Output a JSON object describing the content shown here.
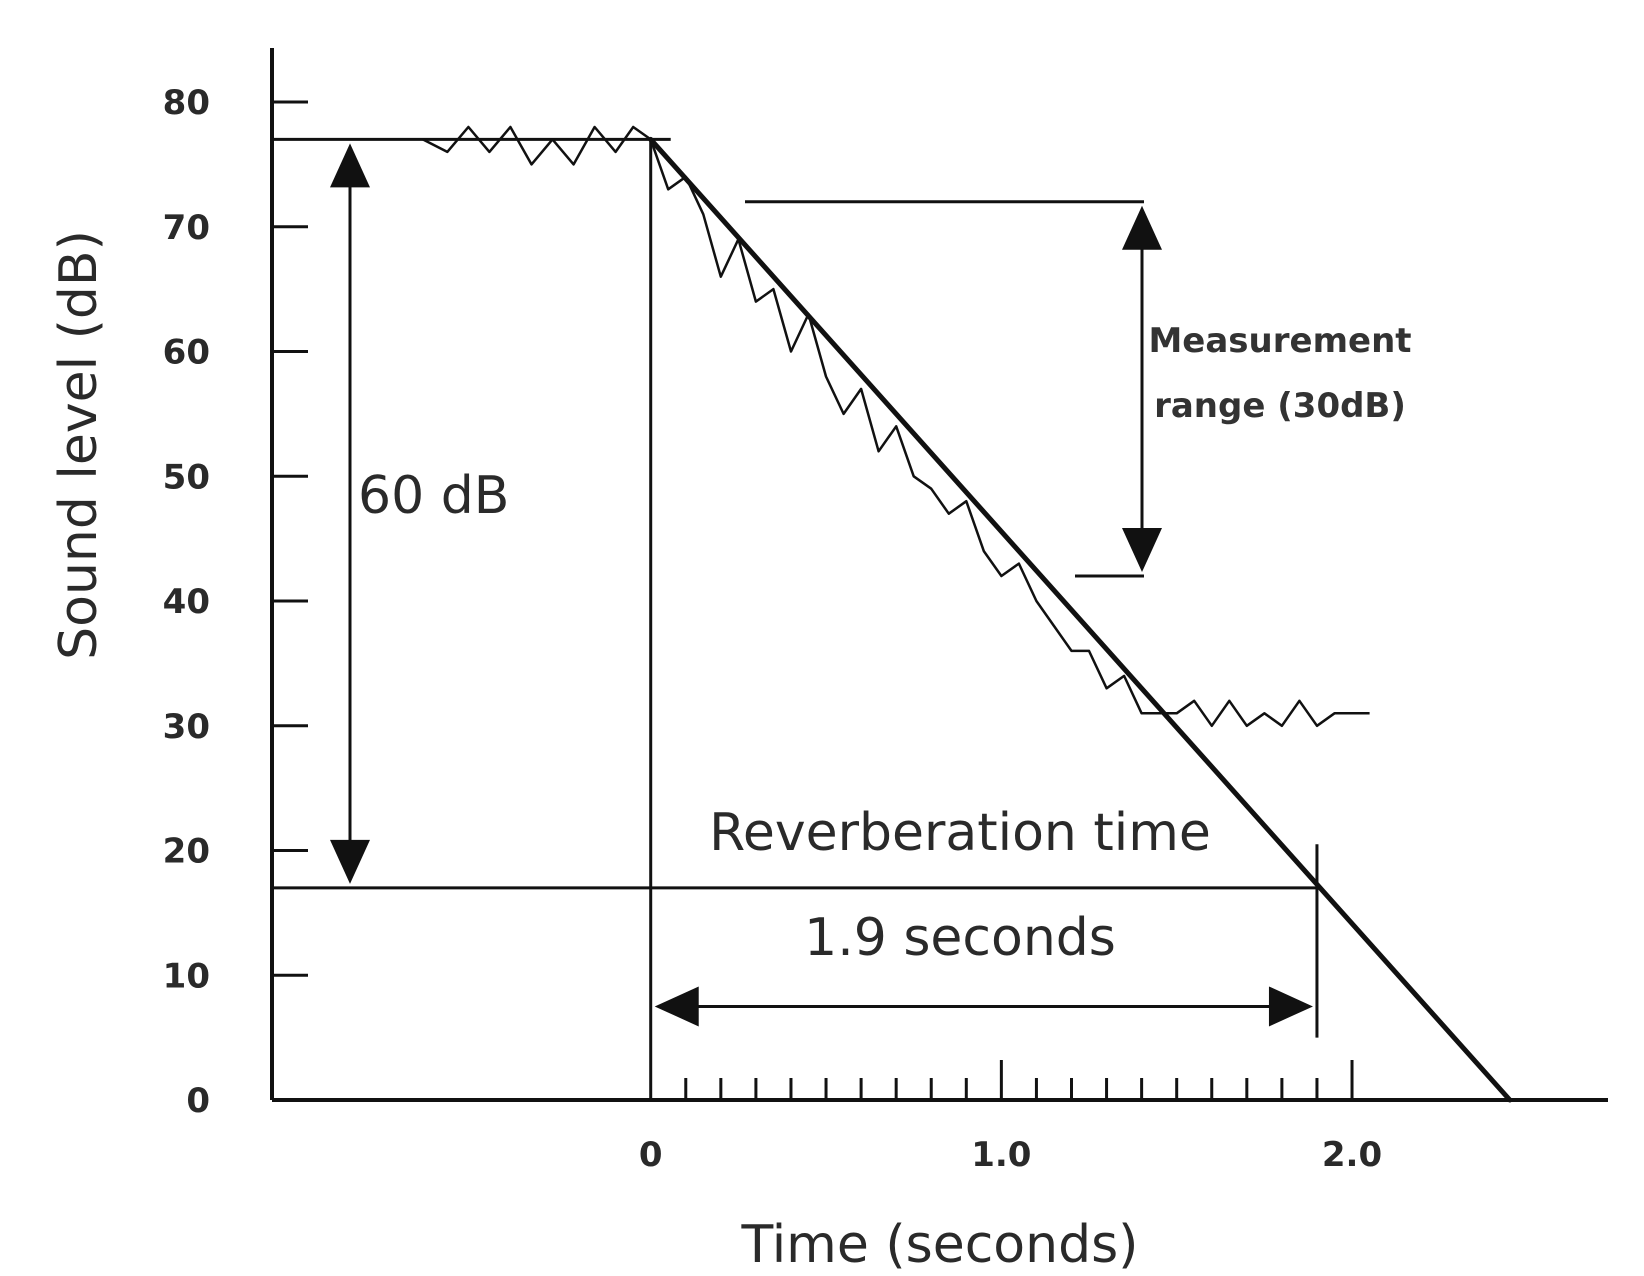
{
  "chart_data": {
    "type": "line",
    "xlabel": "Time (seconds)",
    "ylabel": "Sound level (dB)",
    "xlim": [
      -1.08,
      2.73
    ],
    "ylim": [
      0,
      80
    ],
    "x_tick_labels": [
      {
        "value": 0,
        "label": "0"
      },
      {
        "value": 1.0,
        "label": "1.0"
      },
      {
        "value": 2.0,
        "label": "2.0"
      }
    ],
    "y_tick_labels": [
      {
        "value": 0,
        "label": "0"
      },
      {
        "value": 10,
        "label": "10"
      },
      {
        "value": 20,
        "label": "20"
      },
      {
        "value": 30,
        "label": "30"
      },
      {
        "value": 40,
        "label": "40"
      },
      {
        "value": 50,
        "label": "50"
      },
      {
        "value": 60,
        "label": "60"
      },
      {
        "value": 70,
        "label": "70"
      },
      {
        "value": 80,
        "label": "80"
      }
    ],
    "steady_level_db": 77,
    "decay_line": {
      "x": [
        0,
        2.45
      ],
      "y": [
        77,
        0
      ]
    },
    "measured_signal": {
      "x": [
        -0.65,
        -0.58,
        -0.52,
        -0.46,
        -0.4,
        -0.34,
        -0.28,
        -0.22,
        -0.16,
        -0.1,
        -0.05,
        0.0,
        0.05,
        0.1,
        0.15,
        0.2,
        0.25,
        0.3,
        0.35,
        0.4,
        0.45,
        0.5,
        0.55,
        0.6,
        0.65,
        0.7,
        0.75,
        0.8,
        0.85,
        0.9,
        0.95,
        1.0,
        1.05,
        1.1,
        1.15,
        1.2,
        1.25,
        1.3,
        1.35,
        1.4,
        1.45,
        1.5,
        1.55,
        1.6,
        1.65,
        1.7,
        1.75,
        1.8,
        1.85,
        1.9,
        1.95,
        2.0,
        2.05
      ],
      "y": [
        77,
        76,
        78,
        76,
        78,
        75,
        77,
        75,
        78,
        76,
        78,
        77,
        73,
        74,
        71,
        66,
        69,
        64,
        65,
        60,
        63,
        58,
        55,
        57,
        52,
        54,
        50,
        49,
        47,
        48,
        44,
        42,
        43,
        40,
        38,
        36,
        36,
        33,
        34,
        31,
        31,
        31,
        32,
        30,
        32,
        30,
        31,
        30,
        32,
        30,
        31,
        31,
        31
      ]
    },
    "annotations": {
      "level_drop": "60 dB",
      "measurement_range": [
        "Measurement",
        "range (30dB)"
      ],
      "reverberation_title": "Reverberation time",
      "reverberation_value": "1.9 seconds"
    },
    "reverberation_time_s": 1.9,
    "measurement_range_db": [
      72,
      42
    ],
    "level_drop_db": [
      77,
      17
    ]
  }
}
